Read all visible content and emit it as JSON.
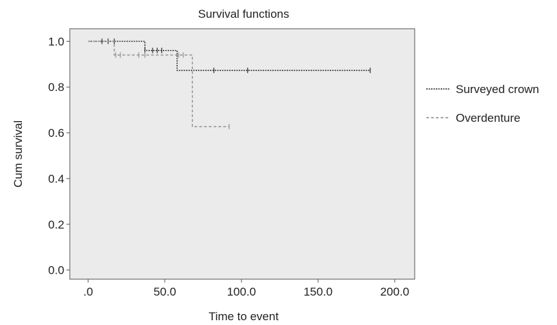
{
  "chart_data": {
    "type": "line",
    "title": "Survival functions",
    "xlabel": "Time to event",
    "ylabel": "Cum survival",
    "xlim": [
      -12,
      213
    ],
    "ylim": [
      -0.04,
      1.055
    ],
    "xticks": [
      0,
      50,
      100,
      150,
      200
    ],
    "xtick_labels": [
      ".0",
      "50.0",
      "100.0",
      "150.0",
      "200.0"
    ],
    "yticks": [
      0,
      0.2,
      0.4,
      0.6,
      0.8,
      1.0
    ],
    "ytick_labels": [
      "0.0",
      "0.2",
      "0.4",
      "0.6",
      "0.8",
      "1.0"
    ],
    "grid": false,
    "legend_position": "right",
    "background": "#ebebeb",
    "series": [
      {
        "name": "Surveyed crown",
        "color": "#3a3a3a",
        "dash": "2,1.5",
        "steps": [
          [
            0,
            1.0
          ],
          [
            37,
            0.96
          ],
          [
            58,
            0.873
          ],
          [
            184,
            0.873
          ]
        ],
        "censored": [
          [
            9,
            1.0
          ],
          [
            13,
            1.0
          ],
          [
            17,
            1.0
          ],
          [
            37,
            0.96
          ],
          [
            42,
            0.96
          ],
          [
            45,
            0.96
          ],
          [
            48,
            0.96
          ],
          [
            82,
            0.873
          ],
          [
            104,
            0.873
          ],
          [
            184,
            0.873
          ]
        ]
      },
      {
        "name": "Overdenture",
        "color": "#9a9a9a",
        "dash": "4,3",
        "steps": [
          [
            0,
            1.0
          ],
          [
            17,
            0.94
          ],
          [
            61,
            0.94
          ],
          [
            68,
            0.627
          ],
          [
            92,
            0.627
          ]
        ],
        "censored": [
          [
            18,
            0.94
          ],
          [
            21,
            0.94
          ],
          [
            33,
            0.94
          ],
          [
            37,
            0.94
          ],
          [
            59,
            0.94
          ],
          [
            62,
            0.94
          ],
          [
            92,
            0.627
          ]
        ]
      }
    ]
  }
}
